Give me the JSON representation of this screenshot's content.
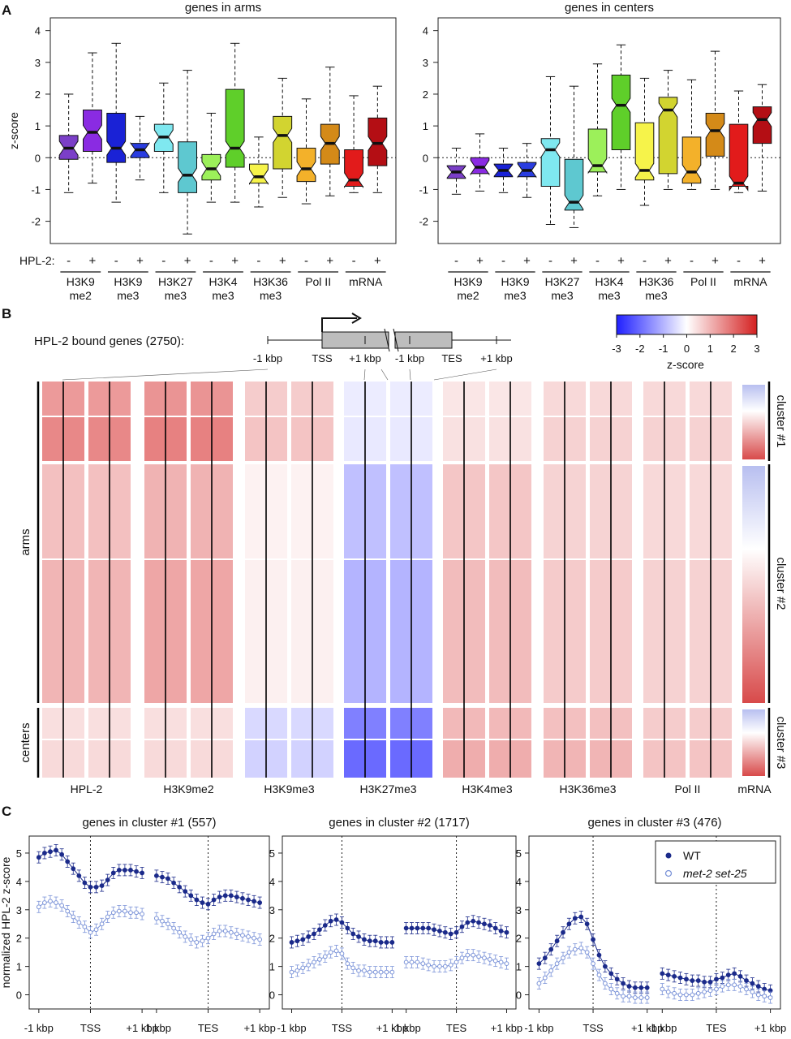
{
  "panels": {
    "A": "A",
    "B": "B",
    "C": "C"
  },
  "chart_data": [
    {
      "type": "box",
      "panel": "A",
      "title": "genes in arms",
      "ylabel": "z-score",
      "ylim": [
        -2.7,
        4.4
      ],
      "yticks": [
        -2,
        -1,
        0,
        1,
        2,
        3,
        4
      ],
      "hpl2_row_label": "HPL-2:",
      "hpl2_states": [
        "-",
        "+"
      ],
      "group_labels": [
        [
          "H3K9",
          "me2"
        ],
        [
          "H3K9",
          "me3"
        ],
        [
          "H3K27",
          "me3"
        ],
        [
          "H3K4",
          "me3"
        ],
        [
          "H3K36",
          "me3"
        ],
        [
          "Pol II",
          ""
        ],
        [
          "mRNA",
          ""
        ]
      ],
      "boxes": [
        {
          "group": "H3K9me2",
          "hpl2": "-",
          "color": "#7b3fc8",
          "whisker_low": -1.1,
          "q1": -0.05,
          "median": 0.3,
          "q3": 0.7,
          "whisker_high": 2.0
        },
        {
          "group": "H3K9me2",
          "hpl2": "+",
          "color": "#8a2be2",
          "whisker_low": -0.8,
          "q1": 0.2,
          "median": 0.8,
          "q3": 1.5,
          "whisker_high": 3.3
        },
        {
          "group": "H3K9me3",
          "hpl2": "-",
          "color": "#1a22d6",
          "whisker_low": -1.4,
          "q1": -0.15,
          "median": 0.3,
          "q3": 1.4,
          "whisker_high": 3.6
        },
        {
          "group": "H3K9me3",
          "hpl2": "+",
          "color": "#2a3de0",
          "whisker_low": -0.7,
          "q1": 0.0,
          "median": 0.25,
          "q3": 0.45,
          "whisker_high": 1.3
        },
        {
          "group": "H3K27me3",
          "hpl2": "-",
          "color": "#7fe8f0",
          "whisker_low": -1.1,
          "q1": 0.2,
          "median": 0.65,
          "q3": 1.05,
          "whisker_high": 2.35
        },
        {
          "group": "H3K27me3",
          "hpl2": "+",
          "color": "#5ec8d0",
          "whisker_low": -2.4,
          "q1": -1.1,
          "median": -0.55,
          "q3": 0.5,
          "whisker_high": 2.75
        },
        {
          "group": "H3K4me3",
          "hpl2": "-",
          "color": "#9cf05a",
          "whisker_low": -1.4,
          "q1": -0.7,
          "median": -0.35,
          "q3": 0.1,
          "whisker_high": 1.4
        },
        {
          "group": "H3K4me3",
          "hpl2": "+",
          "color": "#5fcf2a",
          "whisker_low": -1.4,
          "q1": -0.3,
          "median": 0.3,
          "q3": 2.15,
          "whisker_high": 3.6
        },
        {
          "group": "H3K36me3",
          "hpl2": "-",
          "color": "#f6f34a",
          "whisker_low": -1.55,
          "q1": -0.8,
          "median": -0.6,
          "q3": -0.2,
          "whisker_high": 0.65
        },
        {
          "group": "H3K36me3",
          "hpl2": "+",
          "color": "#d2d430",
          "whisker_low": -1.25,
          "q1": -0.35,
          "median": 0.7,
          "q3": 1.3,
          "whisker_high": 2.5
        },
        {
          "group": "Pol II",
          "hpl2": "-",
          "color": "#f3b12a",
          "whisker_low": -1.45,
          "q1": -0.75,
          "median": -0.35,
          "q3": 0.3,
          "whisker_high": 1.85
        },
        {
          "group": "Pol II",
          "hpl2": "+",
          "color": "#d48a18",
          "whisker_low": -1.2,
          "q1": -0.2,
          "median": 0.45,
          "q3": 1.05,
          "whisker_high": 2.85
        },
        {
          "group": "mRNA",
          "hpl2": "-",
          "color": "#e21b1b",
          "whisker_low": -1.1,
          "q1": -0.9,
          "median": -0.7,
          "q3": 0.25,
          "whisker_high": 1.95
        },
        {
          "group": "mRNA",
          "hpl2": "+",
          "color": "#b40e14",
          "whisker_low": -1.1,
          "q1": -0.25,
          "median": 0.45,
          "q3": 1.25,
          "whisker_high": 2.25
        }
      ]
    },
    {
      "type": "box",
      "panel": "A",
      "title": "genes in centers",
      "ylabel": "",
      "ylim": [
        -2.7,
        4.4
      ],
      "yticks": [
        -2,
        -1,
        0,
        1,
        2,
        3,
        4
      ],
      "hpl2_states": [
        "-",
        "+"
      ],
      "group_labels": [
        [
          "H3K9",
          "me2"
        ],
        [
          "H3K9",
          "me3"
        ],
        [
          "H3K27",
          "me3"
        ],
        [
          "H3K4",
          "me3"
        ],
        [
          "H3K36",
          "me3"
        ],
        [
          "Pol II",
          ""
        ],
        [
          "mRNA",
          ""
        ]
      ],
      "boxes": [
        {
          "group": "H3K9me2",
          "hpl2": "-",
          "color": "#7b3fc8",
          "whisker_low": -1.15,
          "q1": -0.65,
          "median": -0.45,
          "q3": -0.25,
          "whisker_high": 0.3
        },
        {
          "group": "H3K9me2",
          "hpl2": "+",
          "color": "#8a2be2",
          "whisker_low": -1.05,
          "q1": -0.5,
          "median": -0.3,
          "q3": 0.0,
          "whisker_high": 0.75
        },
        {
          "group": "H3K9me3",
          "hpl2": "-",
          "color": "#1a22d6",
          "whisker_low": -1.1,
          "q1": -0.6,
          "median": -0.4,
          "q3": -0.2,
          "whisker_high": 0.3
        },
        {
          "group": "H3K9me3",
          "hpl2": "+",
          "color": "#2a3de0",
          "whisker_low": -1.25,
          "q1": -0.6,
          "median": -0.4,
          "q3": -0.15,
          "whisker_high": 0.45
        },
        {
          "group": "H3K27me3",
          "hpl2": "-",
          "color": "#7fe8f0",
          "whisker_low": -2.1,
          "q1": -0.9,
          "median": 0.25,
          "q3": 0.6,
          "whisker_high": 2.55
        },
        {
          "group": "H3K27me3",
          "hpl2": "+",
          "color": "#5ec8d0",
          "whisker_low": -2.2,
          "q1": -1.65,
          "median": -1.4,
          "q3": -0.05,
          "whisker_high": 2.25
        },
        {
          "group": "H3K4me3",
          "hpl2": "-",
          "color": "#9cf05a",
          "whisker_low": -1.2,
          "q1": -0.45,
          "median": -0.25,
          "q3": 0.9,
          "whisker_high": 2.95
        },
        {
          "group": "H3K4me3",
          "hpl2": "+",
          "color": "#5fcf2a",
          "whisker_low": -1.0,
          "q1": 0.25,
          "median": 1.65,
          "q3": 2.6,
          "whisker_high": 3.55
        },
        {
          "group": "H3K36me3",
          "hpl2": "-",
          "color": "#f6f34a",
          "whisker_low": -1.5,
          "q1": -0.7,
          "median": -0.4,
          "q3": 1.1,
          "whisker_high": 2.5
        },
        {
          "group": "H3K36me3",
          "hpl2": "+",
          "color": "#d2d430",
          "whisker_low": -1.0,
          "q1": -0.5,
          "median": 1.5,
          "q3": 1.9,
          "whisker_high": 2.75
        },
        {
          "group": "Pol II",
          "hpl2": "-",
          "color": "#f3b12a",
          "whisker_low": -1.0,
          "q1": -0.8,
          "median": -0.45,
          "q3": 0.65,
          "whisker_high": 2.45
        },
        {
          "group": "Pol II",
          "hpl2": "+",
          "color": "#d48a18",
          "whisker_low": -1.0,
          "q1": 0.05,
          "median": 0.85,
          "q3": 1.4,
          "whisker_high": 3.35
        },
        {
          "group": "mRNA",
          "hpl2": "-",
          "color": "#e21b1b",
          "whisker_low": -1.1,
          "q1": -0.9,
          "median": -0.8,
          "q3": 1.05,
          "whisker_high": 2.1
        },
        {
          "group": "mRNA",
          "hpl2": "+",
          "color": "#b40e14",
          "whisker_low": -1.05,
          "q1": 0.45,
          "median": 1.2,
          "q3": 1.6,
          "whisker_high": 2.3
        }
      ]
    },
    {
      "type": "heatmap",
      "panel": "B",
      "gene_model_label": "HPL-2 bound genes (2750):",
      "gene_model_ticks": [
        "-1 kbp",
        "TSS",
        "+1 kbp",
        "-1 kbp",
        "TES",
        "+1 kbp"
      ],
      "colorbar": {
        "label": "z-score",
        "ticks": [
          -3,
          -2,
          -1,
          0,
          1,
          2,
          3
        ],
        "low_color": "#1f1fff",
        "mid_color": "#ffffff",
        "high_color": "#d42020"
      },
      "columns": [
        "HPL-2",
        "H3K9me2",
        "H3K9me3",
        "H3K27me3",
        "H3K4me3",
        "H3K36me3",
        "Pol II",
        "mRNA"
      ],
      "row_groups": [
        {
          "label": "arms",
          "clusters": [
            "cluster #1",
            "cluster #2"
          ]
        },
        {
          "label": "centers",
          "clusters": [
            "cluster #3"
          ]
        }
      ],
      "clusters": [
        {
          "label": "cluster #1",
          "n": 557,
          "column_means": {
            "HPL-2": 1.6,
            "H3K9me2": 1.7,
            "H3K9me3": 0.8,
            "H3K27me3": -0.3,
            "H3K4me3": 0.4,
            "H3K36me3": 0.6,
            "Pol II": 0.6
          }
        },
        {
          "label": "cluster #2",
          "n": 1717,
          "column_means": {
            "HPL-2": 1.0,
            "H3K9me2": 1.2,
            "H3K9me3": 0.2,
            "H3K27me3": -1.0,
            "H3K4me3": 0.9,
            "H3K36me3": 0.7,
            "Pol II": 0.6
          }
        },
        {
          "label": "cluster #3",
          "n": 476,
          "column_means": {
            "HPL-2": 0.5,
            "H3K9me2": 0.5,
            "H3K9me3": -0.6,
            "H3K27me3": -2.0,
            "H3K4me3": 1.1,
            "H3K36me3": 1.0,
            "Pol II": 0.8
          }
        }
      ]
    },
    {
      "type": "line",
      "panel": "C",
      "title": "genes in cluster #1 (557)",
      "ylabel": "normalized HPL-2 z-score",
      "ylim": [
        -0.5,
        5.6
      ],
      "yticks": [
        0,
        1,
        2,
        3,
        4,
        5
      ],
      "xticks": [
        "-1 kbp",
        "TSS",
        "+1 kbp",
        "-1 kbp",
        "TES",
        "+1 kbp"
      ],
      "series": [
        {
          "name": "WT",
          "color": "#1b2a8a",
          "filled": true,
          "tss_segment": [
            4.85,
            5.0,
            5.05,
            5.1,
            4.95,
            4.7,
            4.45,
            4.2,
            3.95,
            3.8,
            3.8,
            3.85,
            4.05,
            4.3,
            4.4,
            4.4,
            4.4,
            4.35,
            4.3
          ],
          "tes_segment": [
            4.2,
            4.15,
            4.1,
            3.95,
            3.8,
            3.65,
            3.5,
            3.35,
            3.25,
            3.2,
            3.35,
            3.45,
            3.5,
            3.5,
            3.45,
            3.4,
            3.35,
            3.3,
            3.25
          ]
        },
        {
          "name": "met-2 set-25",
          "color": "#7b93d8",
          "filled": false,
          "tss_segment": [
            3.1,
            3.25,
            3.3,
            3.25,
            3.15,
            2.95,
            2.75,
            2.55,
            2.4,
            2.2,
            2.3,
            2.5,
            2.75,
            2.9,
            2.95,
            2.95,
            2.9,
            2.9,
            2.85
          ],
          "tes_segment": [
            2.7,
            2.6,
            2.5,
            2.35,
            2.2,
            2.05,
            1.95,
            1.85,
            1.9,
            2.0,
            2.15,
            2.25,
            2.25,
            2.2,
            2.15,
            2.1,
            2.05,
            2.0,
            1.95
          ]
        }
      ]
    },
    {
      "type": "line",
      "panel": "C",
      "title": "genes in cluster #2 (1717)",
      "ylim": [
        -0.5,
        5.6
      ],
      "yticks": [
        0,
        1,
        2,
        3,
        4,
        5
      ],
      "xticks": [
        "-1 kbp",
        "TSS",
        "+1 kbp",
        "-1 kbp",
        "TES",
        "+1 kbp"
      ],
      "series": [
        {
          "name": "WT",
          "color": "#1b2a8a",
          "filled": true,
          "tss_segment": [
            1.85,
            1.9,
            1.95,
            2.05,
            2.15,
            2.3,
            2.45,
            2.6,
            2.65,
            2.55,
            2.35,
            2.15,
            2.05,
            1.95,
            1.9,
            1.9,
            1.85,
            1.85,
            1.85
          ],
          "tes_segment": [
            2.35,
            2.35,
            2.35,
            2.35,
            2.35,
            2.3,
            2.25,
            2.2,
            2.15,
            2.2,
            2.4,
            2.55,
            2.6,
            2.55,
            2.5,
            2.45,
            2.35,
            2.25,
            2.2
          ]
        },
        {
          "name": "met-2 set-25",
          "color": "#7b93d8",
          "filled": false,
          "tss_segment": [
            0.8,
            0.85,
            0.95,
            1.05,
            1.15,
            1.25,
            1.35,
            1.5,
            1.55,
            1.45,
            1.1,
            0.95,
            0.85,
            0.85,
            0.8,
            0.8,
            0.8,
            0.8,
            0.8
          ],
          "tes_segment": [
            1.15,
            1.15,
            1.15,
            1.1,
            1.05,
            1.0,
            1.0,
            1.0,
            1.05,
            1.15,
            1.3,
            1.4,
            1.4,
            1.35,
            1.3,
            1.25,
            1.2,
            1.15,
            1.1
          ]
        }
      ]
    },
    {
      "type": "line",
      "panel": "C",
      "title": "genes in cluster #3 (476)",
      "ylim": [
        -0.5,
        5.6
      ],
      "yticks": [
        0,
        1,
        2,
        3,
        4,
        5
      ],
      "xticks": [
        "-1 kbp",
        "TSS",
        "+1 kbp",
        "-1 kbp",
        "TES",
        "+1 kbp"
      ],
      "legend": {
        "placement": "top-right",
        "entries": [
          "WT",
          "met-2 set-25"
        ]
      },
      "series": [
        {
          "name": "WT",
          "color": "#1b2a8a",
          "filled": true,
          "tss_segment": [
            1.1,
            1.3,
            1.6,
            1.9,
            2.2,
            2.5,
            2.7,
            2.75,
            2.5,
            1.95,
            1.4,
            1.0,
            0.75,
            0.55,
            0.4,
            0.3,
            0.25,
            0.25,
            0.25
          ],
          "tes_segment": [
            0.75,
            0.7,
            0.65,
            0.6,
            0.55,
            0.5,
            0.5,
            0.45,
            0.45,
            0.55,
            0.6,
            0.7,
            0.75,
            0.65,
            0.5,
            0.4,
            0.3,
            0.2,
            0.15
          ]
        },
        {
          "name": "met-2 set-25",
          "color": "#7b93d8",
          "filled": false,
          "tss_segment": [
            0.4,
            0.6,
            0.85,
            1.1,
            1.3,
            1.5,
            1.6,
            1.65,
            1.5,
            1.1,
            0.7,
            0.4,
            0.2,
            0.05,
            -0.05,
            -0.05,
            -0.1,
            -0.1,
            -0.1
          ],
          "tes_segment": [
            0.2,
            0.1,
            0.05,
            0.0,
            0.0,
            0.0,
            0.05,
            0.1,
            0.15,
            0.2,
            0.3,
            0.35,
            0.35,
            0.3,
            0.2,
            0.1,
            0.0,
            -0.05,
            -0.1
          ]
        }
      ]
    }
  ]
}
